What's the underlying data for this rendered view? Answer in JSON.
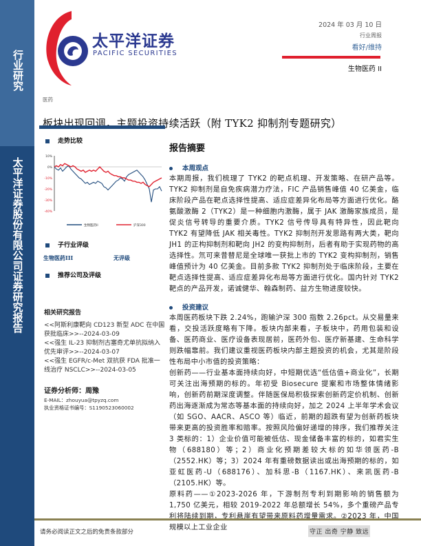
{
  "sidebar": {
    "top_label": "行业研究",
    "bottom_label": "太平洋证券股份有限公司证券研究报告"
  },
  "brand": {
    "name_cn": "太平洋证券",
    "name_en": "PACIFIC SECURITIES"
  },
  "header": {
    "date": "2024 年 03 月 10 日",
    "report_type": "行业周报",
    "rating": "看好/维持",
    "sector": "生物医药 II",
    "category": "医药"
  },
  "title": "板块出现回调，主题投资持续活跃（附 TYK2 抑制剂专题研究）",
  "left": {
    "trend_heading": "走势比较",
    "chart_data": {
      "type": "line",
      "yticks": [
        "10%",
        "0%",
        "-10%",
        "-20%",
        "-30%",
        "-40%"
      ],
      "ylim": [
        -40,
        10
      ],
      "grid": false,
      "legend": "bottom",
      "series": [
        {
          "name": "生物医药II",
          "color": "#1f4a7c",
          "values": [
            0,
            -2,
            -3,
            -1,
            -4,
            -2,
            0,
            1,
            -2,
            -4,
            -6,
            -8,
            -10,
            -11,
            -13,
            -15,
            -14,
            -16,
            -15,
            -14,
            -15,
            -13,
            -14,
            -15,
            -18,
            -19,
            -21,
            -19,
            -17,
            -15,
            -13,
            -12,
            -10,
            -11,
            -13,
            -9,
            -7,
            -6,
            -5,
            -4,
            -3,
            -5,
            -7,
            -9,
            -12,
            -16,
            -20,
            -32,
            -21,
            -20,
            -20,
            -18,
            -22
          ]
        },
        {
          "name": "沪深300",
          "color": "#e0202e",
          "values": [
            0,
            1,
            0,
            2,
            1,
            3,
            2,
            1,
            0,
            1,
            0,
            -2,
            -3,
            -4,
            -3,
            -5,
            -4,
            -3,
            -4,
            -3,
            -4,
            -2,
            0,
            -2,
            -4,
            -5,
            -4,
            -6,
            -7,
            -8,
            -8,
            -9,
            -9,
            -10,
            -10,
            -11,
            -12,
            -12,
            -13,
            -13,
            -14,
            -14,
            -15,
            -14,
            -16,
            -17,
            -18,
            -16,
            -14,
            -13,
            -12,
            -11,
            -10
          ]
        }
      ]
    },
    "sub_rating_heading": "子行业评级",
    "sub_rating": {
      "name": "生物医药III",
      "rating": "无评级"
    },
    "recommend_heading": "推荐公司及评级",
    "related_heading": "相关研究报告",
    "related": [
      "<<阿斯利康靶向 CD123 新型 ADC 在中国获批临床>>--2024-03-09",
      "<<强生 IL-23 抑制剂古塞奇尤单抗拟纳入优先审评>>--2024-03-07",
      "<<强生 EGFR/c-Met 双抗获 FDA 批准一线治疗 NSCLC>>--2024-03-05"
    ],
    "analyst": {
      "name": "证券分析师：周豫",
      "email": "E-MAIL：zhouyua@tpyzq.com",
      "license": "执业资格证书编号：S1190523060002"
    }
  },
  "summary": {
    "title": "报告摘要",
    "view_heading": "本周观点",
    "view_text": "本期周报，我们梳理了 TYK2 的靶点机理、开发策略、在研产品等。TYK2 抑制剂是自免疾病潜力疗法，FIC 产品销售峰值 40 亿美金，临床阶段产品在靶点选择性提高、适应症差异化布局等方面进行优化。酪氨酸激酶 2（TYK2）是一种细胞内激酶，属于 JAK 激酶家族成员，是促炎信号转导的重要介质。TYK2 信号传导具有特异性，因此靶向 TYK2 有望降低 JAK 相关毒性。TYK2 抑制剂开发思路有两大类，靶向 JH1 的正构抑制剂和靶向 JH2 的变构抑制剂，后者有助于实现药物的高选择性。氘可来昔替尼是全球唯一获批上市的 TYK2 变构抑制剂，销售峰值预计为 40 亿美金。目前多款 TYK2 抑制剂处于临床阶段，主要在靶点选择性提高、适应症差异化布局等方面进行优化。国内针对 TYK2 靶点的产品开发，诺诚健华、翰森制药、益方生物进度较快。",
    "advice_heading": "投资建议",
    "advice_p1": "本周医药板块下跌 2.24%，跑输沪深 300 指数 2.26pct。从交易量来看，交投活跃度略有下降。板块内部来看，子板块中，药用包装和设备、医药商业、医疗设备表现居前，医药外包、医疗新基建、生命科学则跌幅靠前。我们建议重视医药板块内部主题投资的机会，尤其是阶段性布局中小市值的投资策略：",
    "advice_p2": "创新药——行业基本面持续向好，中短期优选“低估值+商业化”，长期可关注出海预期的标的。年初受 Biosecure 提案和市场整体情绪影响，创新药前期深度调整。伴随医保局积极探索创新药定价机制、创新药出海逐渐成为常态等基本面的持续向好，加之 2024 上半年学术会议（如 SGO、AACR、ASCO 等）临近，前期的超跌有望为创新药板块带来更高的投资胜率和赔率。按照风险偏好递增的排序，我们推荐关注 3 类标的：1）企业价值可能被低估、现金储备丰富的标的，如君实生物（688180）等；2）商业化预期差较大标的如华领医药-B（2552.HK）等；3）2024 年有重磅数据读出或出海预期的标的，如亚虹医药-U（688176）、加科思-B（1167.HK）、来凯医药-B（2105.HK）等。",
    "advice_p3": "原料药——①2023-2026 年，下游制剂专利到期影响的销售额为 1,750 亿美元，相较 2019-2022 年总额增长 54%，多个重磅产品专利将陆续到期，专利悬崖有望带来原料药增量需求。②2023 年，中国规模以上工业企业"
  },
  "footer": {
    "disclaimer": "请务必阅读正文之后的免责条款部分",
    "motto": "守正 出奇 宁静 致远"
  }
}
